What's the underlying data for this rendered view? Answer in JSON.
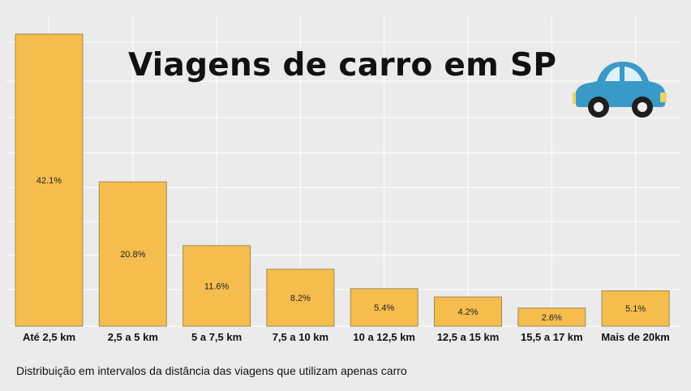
{
  "chart_data": {
    "type": "bar",
    "title": "Viagens de carro em SP",
    "caption": "Distribuição em intervalos da distância das viagens que utilizam apenas carro",
    "categories": [
      "Até 2,5 km",
      "2,5 a 5 km",
      "5 a 7,5 km",
      "7,5 a 10 km",
      "10 a 12,5 km",
      "12,5 a 15 km",
      "15,5 a 17 km",
      "Mais de 20km"
    ],
    "values": [
      42.1,
      20.8,
      11.6,
      8.2,
      5.4,
      4.2,
      2.6,
      5.1
    ],
    "value_labels": [
      "42.1%",
      "20.8%",
      "11.6%",
      "8.2%",
      "5.4%",
      "4.2%",
      "2.6%",
      "5.1%"
    ],
    "unit": "%",
    "ylim": [
      0,
      42.1
    ],
    "grid": true,
    "legend": "none"
  },
  "colors": {
    "background": "#ebebeb",
    "bar_fill": "#f5bd4e",
    "bar_stroke": "#9b8a55",
    "gridline": "#ffffff",
    "car_body": "#3a9ac7",
    "car_window": "#dff1fa",
    "wheel": "#1e1e1e"
  },
  "icons": {
    "decoration": "car-icon"
  }
}
